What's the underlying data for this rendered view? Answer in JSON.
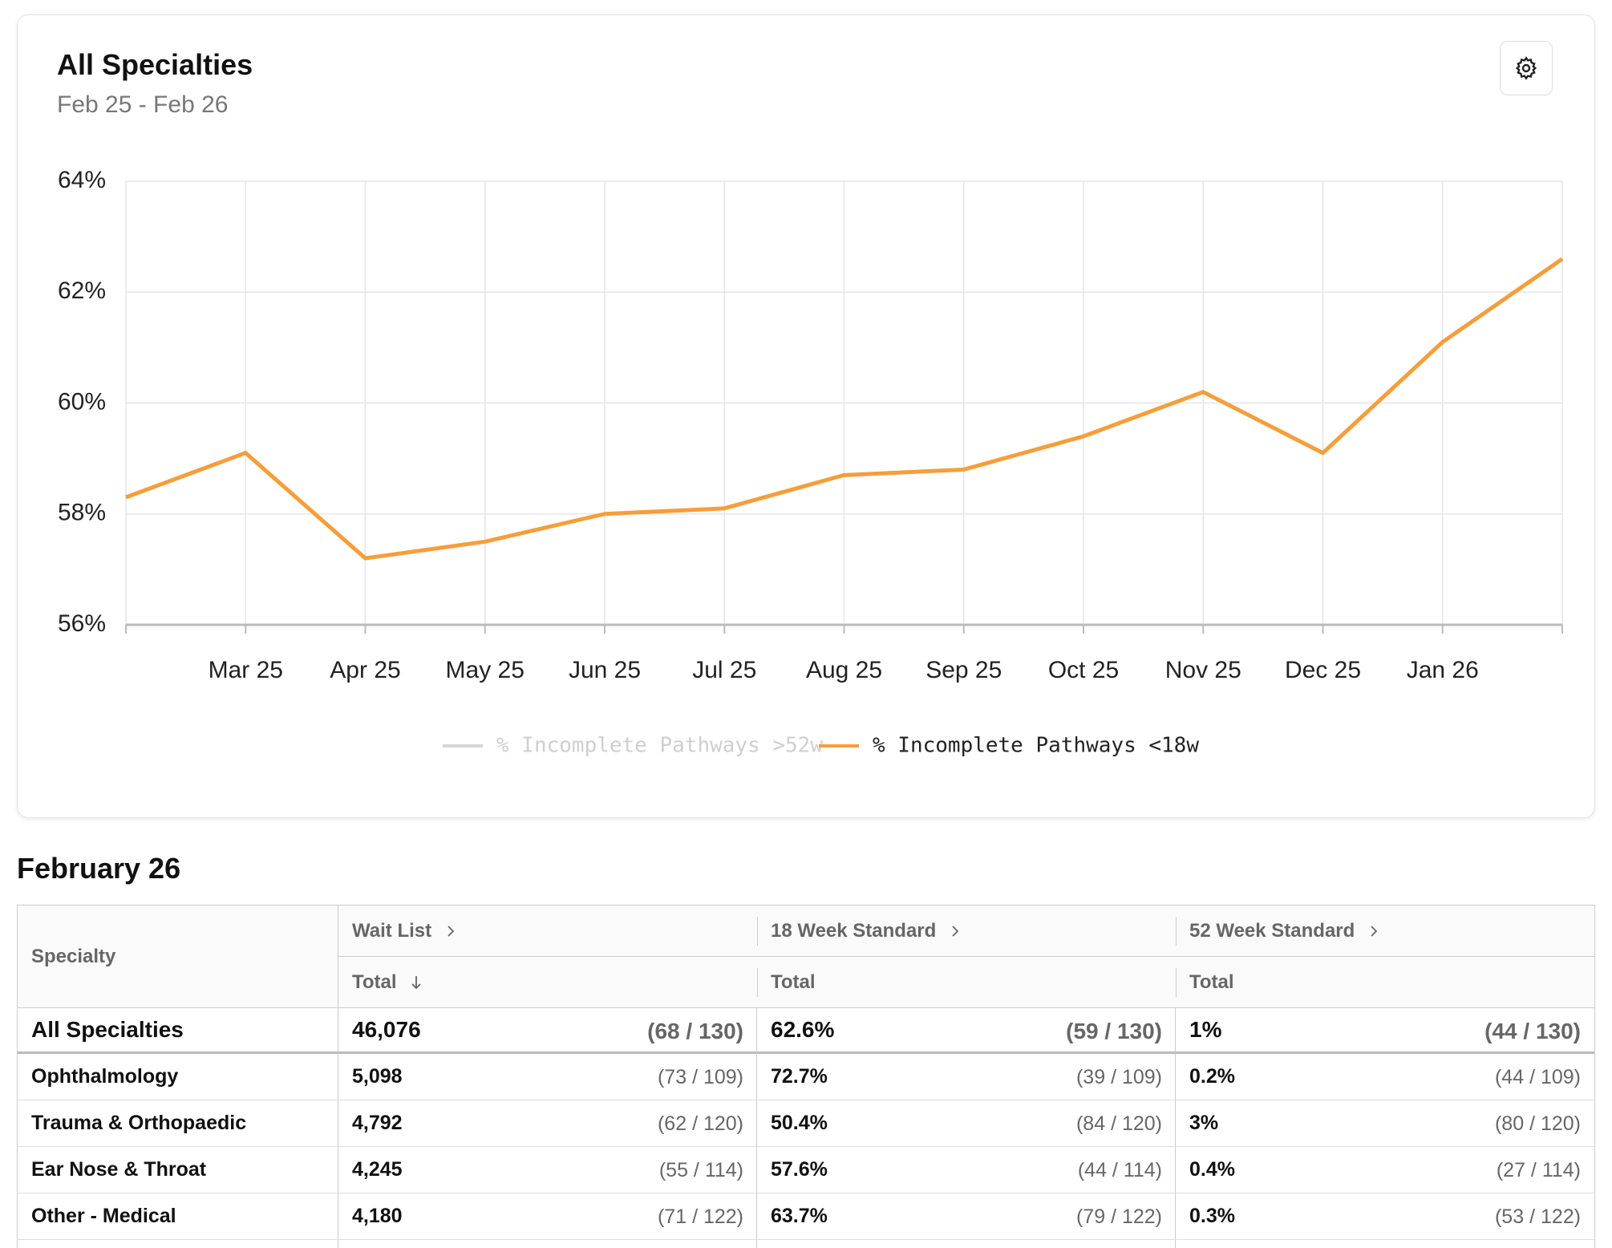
{
  "chart_data": {
    "type": "line",
    "title": "All Specialties",
    "subtitle": "Feb 25 - Feb 26",
    "categories": [
      null,
      "Mar 25",
      "Apr 25",
      "May 25",
      "Jun 25",
      "Jul 25",
      "Aug 25",
      "Sep 25",
      "Oct 25",
      "Nov 25",
      "Dec 25",
      "Jan 26",
      null
    ],
    "series": [
      {
        "name": "% Incomplete Pathways >52w",
        "color": "#d6d6d6",
        "hidden": true
      },
      {
        "name": "% Incomplete Pathways <18w",
        "color": "#f59e3a",
        "values": [
          58.3,
          59.1,
          57.2,
          57.5,
          58.0,
          58.1,
          58.7,
          58.8,
          59.4,
          60.2,
          59.1,
          61.1,
          62.6
        ]
      }
    ],
    "ylim": [
      56,
      64
    ],
    "yticks": [
      {
        "value": 56,
        "label": "56%"
      },
      {
        "value": 58,
        "label": "58%"
      },
      {
        "value": 60,
        "label": "60%"
      },
      {
        "value": 62,
        "label": "62%"
      },
      {
        "value": 64,
        "label": "64%"
      }
    ],
    "grid": true,
    "legend": "bottom"
  },
  "table": {
    "title": "February 26",
    "header": {
      "specialty": "Specialty",
      "groups": [
        "Wait List",
        "18 Week Standard",
        "52 Week Standard"
      ],
      "sub": [
        "Total",
        "Total",
        "Total"
      ]
    },
    "rows": [
      [
        "All Specialties",
        "46,076",
        "(68 / 130)",
        "62.6%",
        "(59 / 130)",
        "1%",
        "(44 / 130)"
      ],
      [
        "Ophthalmology",
        "5,098",
        "(73 / 109)",
        "72.7%",
        "(39 / 109)",
        "0.2%",
        "(44 / 109)"
      ],
      [
        "Trauma & Orthopaedic",
        "4,792",
        "(62 / 120)",
        "50.4%",
        "(84 / 120)",
        "3%",
        "(80 / 120)"
      ],
      [
        "Ear Nose & Throat",
        "4,245",
        "(55 / 114)",
        "57.6%",
        "(44 / 114)",
        "0.4%",
        "(27 / 114)"
      ],
      [
        "Other - Medical",
        "4,180",
        "(71 / 122)",
        "63.7%",
        "(79 / 122)",
        "0.3%",
        "(53 / 122)"
      ]
    ]
  }
}
